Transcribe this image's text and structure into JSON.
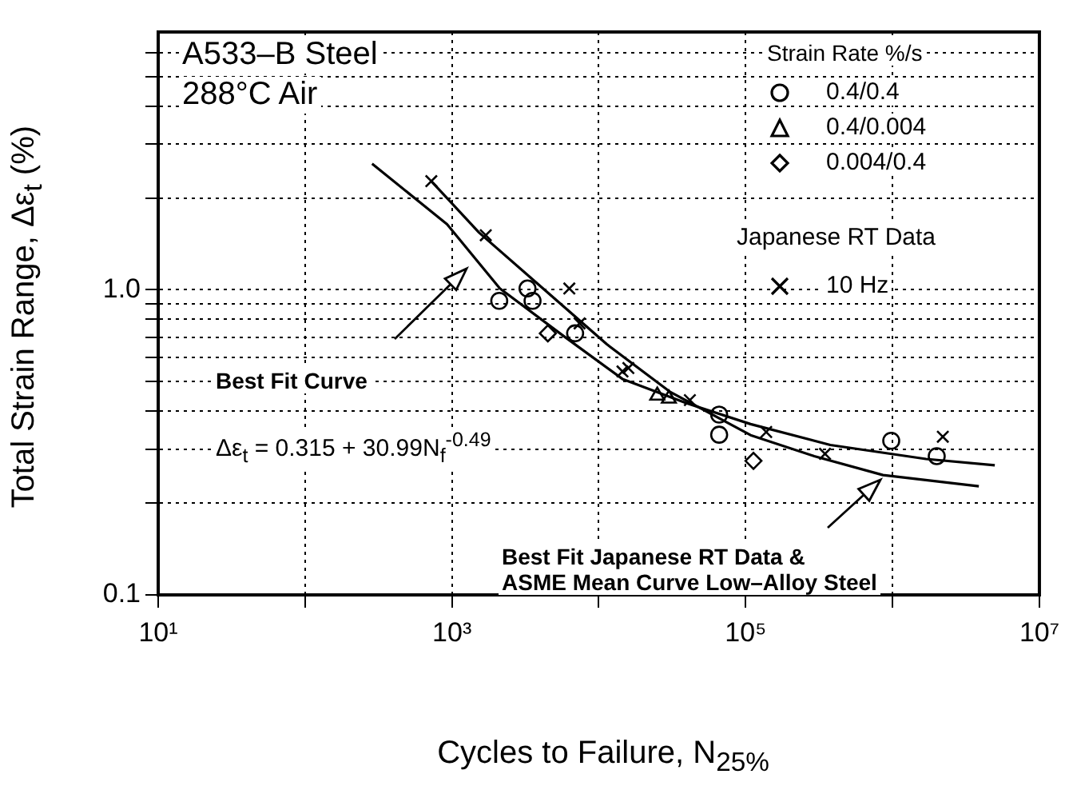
{
  "chart_data": {
    "type": "scatter",
    "xlabel": "Cycles to Failure, N$_{25%}$",
    "ylabel": "Total Strain Range, Δε$_{t}$ (%)",
    "legend_title": "Strain Rate %/s",
    "legend": "top right",
    "log": "xy",
    "grid": true,
    "xlim": [
      10,
      10000000
    ],
    "xticks": [
      {
        "value": 10,
        "label": "10¹"
      },
      {
        "value": 100,
        "label": null
      },
      {
        "value": 1000,
        "label": "10³"
      },
      {
        "value": 10000,
        "label": null
      },
      {
        "value": 100000,
        "label": "10⁵"
      },
      {
        "value": 1000000,
        "label": null
      },
      {
        "value": 10000000,
        "label": "10⁷"
      }
    ],
    "ylim": [
      0.1,
      7
    ],
    "yticks": [
      {
        "value": 0.1,
        "label": "0.1"
      },
      {
        "value": 0.2,
        "label": null
      },
      {
        "value": 0.3,
        "label": null
      },
      {
        "value": 0.4,
        "label": null
      },
      {
        "value": 0.5,
        "label": null
      },
      {
        "value": 0.6,
        "label": null
      },
      {
        "value": 0.7,
        "label": null
      },
      {
        "value": 0.8,
        "label": null
      },
      {
        "value": 0.9,
        "label": null
      },
      {
        "value": 1,
        "label": "1.0"
      },
      {
        "value": 2,
        "label": null
      },
      {
        "value": 3,
        "label": null
      },
      {
        "value": 4,
        "label": null
      },
      {
        "value": 5,
        "label": null
      },
      {
        "value": 6,
        "label": null
      }
    ],
    "series": [
      {
        "name": "0.4/0.4",
        "marker": "circle",
        "color": "#000000",
        "x": [
          2100,
          3270,
          3540,
          6900,
          66000,
          66000,
          980000,
          2000000
        ],
        "values": [
          0.92,
          1.01,
          0.92,
          0.72,
          0.39,
          0.335,
          0.32,
          0.285
        ]
      },
      {
        "name": "0.4/0.004",
        "marker": "triangle",
        "color": "#000000",
        "x": [
          25000,
          30000
        ],
        "values": [
          0.45,
          0.44
        ]
      },
      {
        "name": "0.004/0.4",
        "marker": "diamond",
        "color": "#000000",
        "x": [
          4500,
          113000
        ],
        "values": [
          0.72,
          0.275
        ]
      },
      {
        "name": "10 Hz",
        "marker": "cross",
        "color": "#000000",
        "x": [
          724,
          1700,
          6300,
          7400,
          15900,
          14500,
          41700,
          138000,
          347000,
          2200000
        ],
        "values": [
          2.27,
          1.51,
          1.01,
          0.776,
          0.554,
          0.54,
          0.435,
          0.342,
          0.29,
          0.33
        ]
      },
      {
        "type": "line",
        "marker": "none",
        "line_style": "solid",
        "color": "#000000",
        "x": [
          286,
          927,
          2120,
          5770,
          14600,
          39600,
          108000,
          377000,
          1690000,
          4970000
        ],
        "values": [
          2.59,
          1.64,
          1.01,
          0.705,
          0.509,
          0.425,
          0.363,
          0.31,
          0.279,
          0.266
        ]
      },
      {
        "type": "line",
        "marker": "none",
        "line_style": "solid",
        "color": "#000000",
        "x": [
          724,
          1530,
          4170,
          11300,
          30800,
          108000,
          293000,
          861000,
          3870000
        ],
        "values": [
          2.27,
          1.54,
          1.01,
          0.664,
          0.462,
          0.334,
          0.285,
          0.247,
          0.227
        ]
      }
    ],
    "annotations": [
      "A533–B Steel",
      "288°C Air",
      "Best Fit Curve",
      "Δε$_{t}$ = 0.315 + 30.99N$_{f}$$^{-0.49}$",
      "Best Fit Japanese RT Data &\nASME Mean Curve Low–Alloy Steel",
      "Japanese RT Data"
    ]
  }
}
